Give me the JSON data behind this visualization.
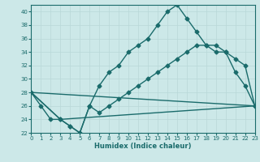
{
  "xlabel": "Humidex (Indice chaleur)",
  "bg_color": "#cce8e8",
  "line_color": "#1a6b6b",
  "grid_color": "#b8d8d8",
  "xlim": [
    0,
    23
  ],
  "ylim": [
    22,
    41
  ],
  "xticks": [
    0,
    1,
    2,
    3,
    4,
    5,
    6,
    7,
    8,
    9,
    10,
    11,
    12,
    13,
    14,
    15,
    16,
    17,
    18,
    19,
    20,
    21,
    22,
    23
  ],
  "yticks": [
    22,
    24,
    26,
    28,
    30,
    32,
    34,
    36,
    38,
    40
  ],
  "series": [
    {
      "x": [
        0,
        1,
        2,
        3,
        4,
        5,
        6,
        7,
        8,
        9,
        10,
        11,
        12,
        13,
        14,
        15,
        16,
        17,
        18,
        19,
        20,
        21,
        22,
        23
      ],
      "y": [
        28,
        26,
        24,
        24,
        23,
        22,
        26,
        29,
        31,
        32,
        34,
        35,
        36,
        38,
        40,
        41,
        39,
        37,
        35,
        35,
        34,
        31,
        29,
        26
      ],
      "marker": "D",
      "markersize": 2.5,
      "linewidth": 1.0,
      "has_markers": true
    },
    {
      "x": [
        0,
        3,
        4,
        5,
        6,
        7,
        8,
        9,
        10,
        11,
        12,
        13,
        14,
        15,
        16,
        17,
        18,
        19,
        20,
        21,
        22,
        23
      ],
      "y": [
        28,
        24,
        23,
        22,
        26,
        25,
        26,
        27,
        28,
        29,
        30,
        31,
        32,
        33,
        34,
        35,
        35,
        34,
        34,
        33,
        32,
        26
      ],
      "marker": "D",
      "markersize": 2.5,
      "linewidth": 1.0,
      "has_markers": true
    },
    {
      "x": [
        0,
        23
      ],
      "y": [
        28,
        26
      ],
      "marker": null,
      "markersize": 0,
      "linewidth": 1.0,
      "has_markers": false
    },
    {
      "x": [
        0,
        3,
        23
      ],
      "y": [
        28,
        24,
        26
      ],
      "marker": null,
      "markersize": 0,
      "linewidth": 1.0,
      "has_markers": false
    }
  ]
}
